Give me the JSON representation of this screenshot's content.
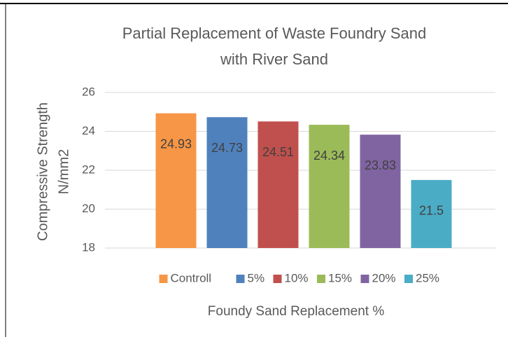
{
  "chart_data": {
    "type": "bar",
    "title": [
      "Partial Replacement of Waste Foundry Sand",
      "with River Sand"
    ],
    "y_label": [
      "Compressive Strength",
      "N/mm2"
    ],
    "x_label": "Foundy Sand Replacement %",
    "series": [
      {
        "name": "Controll",
        "color": "#f79646",
        "values": [
          24.93
        ]
      },
      {
        "name": "5%",
        "color": "#4f81bd",
        "values": [
          24.73
        ]
      },
      {
        "name": "10%",
        "color": "#c0504d",
        "values": [
          24.51
        ]
      },
      {
        "name": "15%",
        "color": "#9bbb59",
        "values": [
          24.34
        ]
      },
      {
        "name": "20%",
        "color": "#8064a2",
        "values": [
          23.83
        ]
      },
      {
        "name": "25%",
        "color": "#4bacc6",
        "values": [
          21.5
        ]
      }
    ],
    "ylim": [
      18,
      26
    ],
    "yticks": [
      18,
      20,
      22,
      24,
      26
    ],
    "grid": true,
    "legend": "bottom"
  }
}
